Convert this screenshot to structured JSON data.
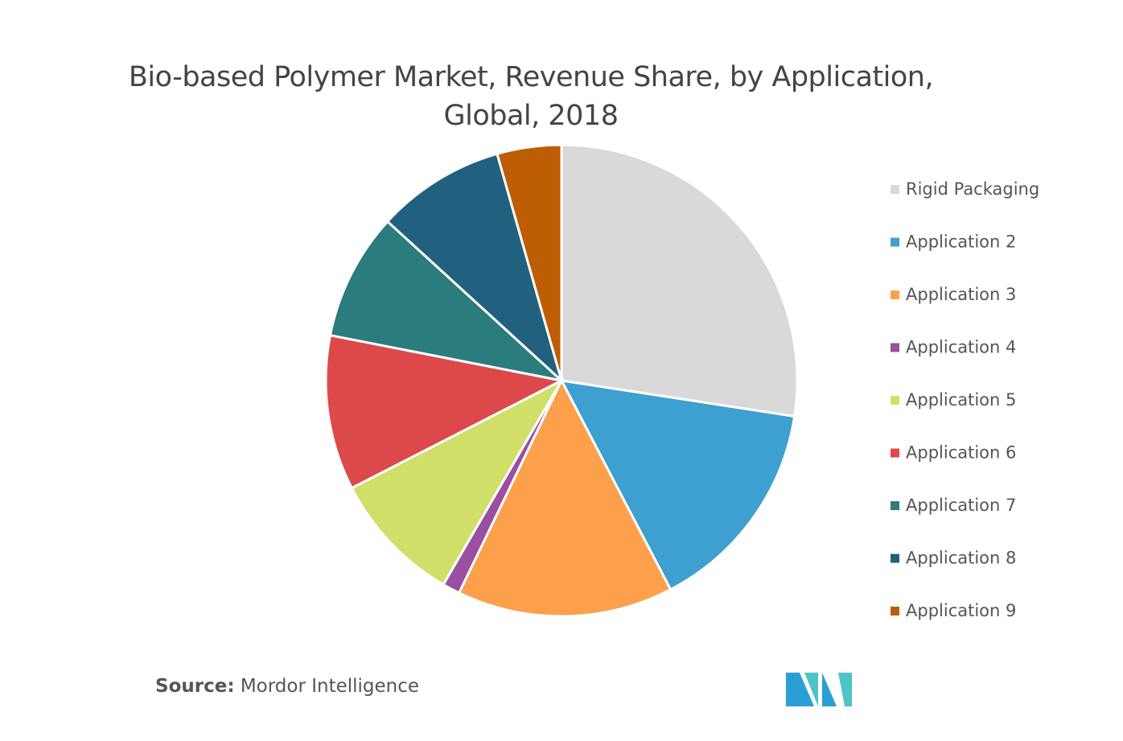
{
  "chart_data": {
    "type": "pie",
    "title": "Bio-based Polymer Market, Revenue Share, by Application, Global, 2018",
    "categories": [
      "Rigid Packaging",
      "Application 2",
      "Application 3",
      "Application 4",
      "Application 5",
      "Application 6",
      "Application 7",
      "Application 8",
      "Application 9"
    ],
    "values": [
      27.4,
      14.9,
      14.8,
      1.2,
      9.1,
      10.6,
      8.7,
      8.8,
      4.4
    ],
    "colors": [
      "#d9d9d9",
      "#3e9fd1",
      "#fca04b",
      "#9a4fa0",
      "#d1df69",
      "#dd494b",
      "#2a7c7d",
      "#22607f",
      "#bd5e04"
    ],
    "legend": "right",
    "source_label": "Source:",
    "source": "Mordor Intelligence"
  }
}
